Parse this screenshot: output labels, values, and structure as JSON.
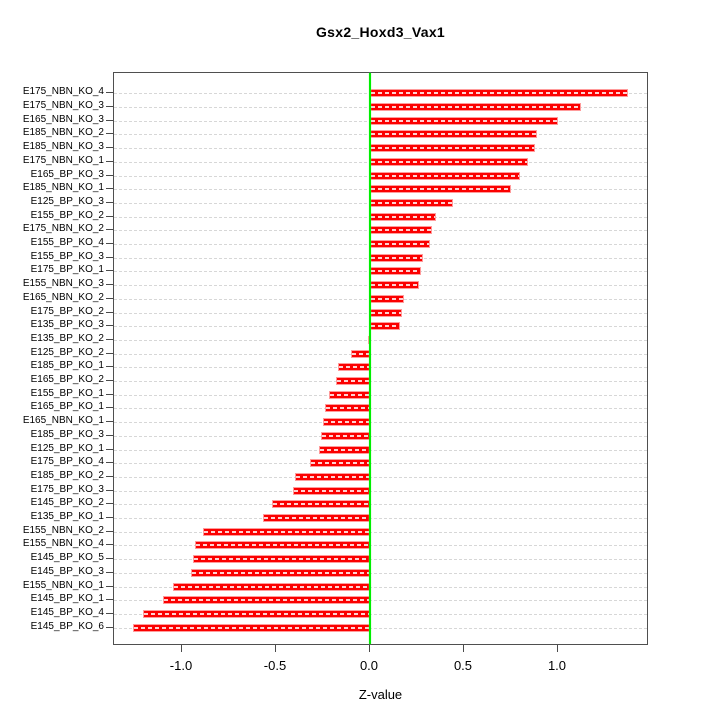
{
  "chart_data": {
    "type": "bar",
    "orientation": "horizontal",
    "title": "Gsx2_Hoxd3_Vax1",
    "xlabel": "Z-value",
    "x_tick_values": [
      -1.0,
      -0.5,
      0.0,
      0.5,
      1.0
    ],
    "x_tick_labels": [
      "-1.0",
      "-0.5",
      "0.0",
      "0.5",
      "1.0"
    ],
    "xlim": [
      -1.36,
      1.48
    ],
    "grid": "dashed horizontal line per category",
    "legend_position": "none",
    "zero_reference_line": 0.0,
    "categories": [
      "E175_NBN_KO_4",
      "E175_NBN_KO_3",
      "E165_NBN_KO_3",
      "E185_NBN_KO_2",
      "E185_NBN_KO_3",
      "E175_NBN_KO_1",
      "E165_BP_KO_3",
      "E185_NBN_KO_1",
      "E125_BP_KO_3",
      "E155_BP_KO_2",
      "E175_NBN_KO_2",
      "E155_BP_KO_4",
      "E155_BP_KO_3",
      "E175_BP_KO_1",
      "E155_NBN_KO_3",
      "E165_NBN_KO_2",
      "E175_BP_KO_2",
      "E135_BP_KO_3",
      "E135_BP_KO_2",
      "E125_BP_KO_2",
      "E185_BP_KO_1",
      "E165_BP_KO_2",
      "E155_BP_KO_1",
      "E165_BP_KO_1",
      "E165_NBN_KO_1",
      "E185_BP_KO_3",
      "E125_BP_KO_1",
      "E175_BP_KO_4",
      "E185_BP_KO_2",
      "E175_BP_KO_3",
      "E145_BP_KO_2",
      "E135_BP_KO_1",
      "E155_NBN_KO_2",
      "E155_NBN_KO_4",
      "E145_BP_KO_5",
      "E145_BP_KO_3",
      "E155_NBN_KO_1",
      "E145_BP_KO_1",
      "E145_BP_KO_4",
      "E145_BP_KO_6"
    ],
    "values": [
      1.37,
      1.12,
      1.0,
      0.89,
      0.88,
      0.84,
      0.8,
      0.75,
      0.44,
      0.35,
      0.33,
      0.32,
      0.28,
      0.27,
      0.26,
      0.18,
      0.17,
      0.16,
      -0.01,
      -0.1,
      -0.17,
      -0.18,
      -0.22,
      -0.24,
      -0.25,
      -0.26,
      -0.27,
      -0.32,
      -0.4,
      -0.41,
      -0.52,
      -0.57,
      -0.89,
      -0.93,
      -0.94,
      -0.95,
      -1.05,
      -1.1,
      -1.21,
      -1.26
    ],
    "colors": {
      "bar_fill": "#ff0000",
      "bar_border": "#ff9b9b",
      "zero_line": "#00ff00",
      "gridline": "#d7d7d7",
      "axis": "#4f4f4f",
      "text": "#000000",
      "background": "#ffffff"
    }
  }
}
